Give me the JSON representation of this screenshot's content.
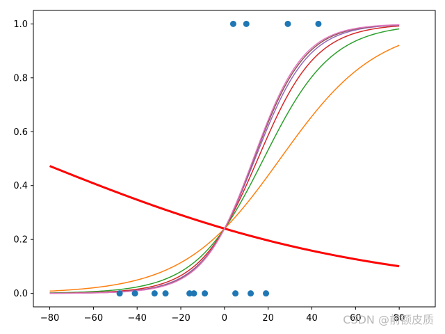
{
  "chart_data": {
    "type": "line",
    "xlim": [
      -87.5,
      96.5
    ],
    "ylim": [
      -0.05,
      1.05
    ],
    "x_ticks": [
      -80,
      -60,
      -40,
      -20,
      0,
      20,
      40,
      60,
      80
    ],
    "y_ticks": [
      0.0,
      0.2,
      0.4,
      0.6,
      0.8,
      1.0
    ],
    "x_tick_labels": [
      "−80",
      "−60",
      "−40",
      "−20",
      "0",
      "20",
      "40",
      "60",
      "80"
    ],
    "y_tick_labels": [
      "0.0",
      "0.2",
      "0.4",
      "0.6",
      "0.8",
      "1.0"
    ],
    "grid": false,
    "curves_x_range": [
      -80,
      80
    ],
    "series": [
      {
        "color": "#ff0000",
        "line_width": 3,
        "intercept": -1.15,
        "slope": -0.013
      },
      {
        "color": "#ff7f0e",
        "line_width": 1.5,
        "intercept": -1.15,
        "slope": 0.045
      },
      {
        "color": "#2ca02c",
        "line_width": 1.5,
        "intercept": -1.15,
        "slope": 0.064
      },
      {
        "color": "#d62728",
        "line_width": 1.5,
        "intercept": -1.15,
        "slope": 0.075
      },
      {
        "color": "#9467bd",
        "line_width": 1.5,
        "intercept": -1.15,
        "slope": 0.082
      },
      {
        "color": "#8c564b",
        "line_width": 1.5,
        "intercept": -1.15,
        "slope": 0.085
      },
      {
        "color": "#e377c2",
        "line_width": 1.5,
        "intercept": -1.15,
        "slope": 0.087
      }
    ],
    "scatter": {
      "color": "#1f77b4",
      "points": [
        {
          "x": -48,
          "y": 0
        },
        {
          "x": -41,
          "y": 0
        },
        {
          "x": -32,
          "y": 0
        },
        {
          "x": -27,
          "y": 0
        },
        {
          "x": -16,
          "y": 0
        },
        {
          "x": -14,
          "y": 0
        },
        {
          "x": -9,
          "y": 0
        },
        {
          "x": 5,
          "y": 0
        },
        {
          "x": 12,
          "y": 0
        },
        {
          "x": 19,
          "y": 0
        },
        {
          "x": 4,
          "y": 1
        },
        {
          "x": 10,
          "y": 1
        },
        {
          "x": 29,
          "y": 1
        },
        {
          "x": 43,
          "y": 1
        }
      ]
    }
  },
  "watermark": "CSDN @前额皮质"
}
